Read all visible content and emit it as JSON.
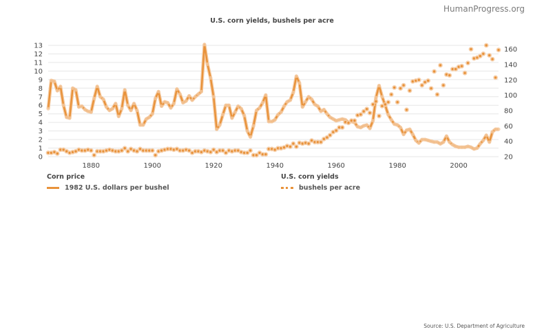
{
  "brand": "HumanProgress.org",
  "source": "Source: U.S. Department of Agriculture",
  "colors": {
    "accent": "#e8923a",
    "halo": "#f4c9a0",
    "grid": "#e6e6e6",
    "text": "#444444"
  },
  "chart_data": {
    "type": "line",
    "title": "U.S. corn yields, bushels per acre",
    "xlabel": "",
    "xlim": [
      1866,
      2013
    ],
    "xticks": [
      1880,
      1900,
      1920,
      1940,
      1960,
      1980,
      2000
    ],
    "left_axis": {
      "label": "Corn price",
      "ylim": [
        0,
        13
      ],
      "ticks": [
        0,
        1,
        2,
        3,
        4,
        5,
        6,
        7,
        8,
        9,
        10,
        11,
        12,
        13
      ]
    },
    "right_axis": {
      "label": "U.S. corn yields",
      "ylim": [
        20,
        165
      ],
      "ticks": [
        20,
        40,
        60,
        80,
        100,
        120,
        140,
        160
      ]
    },
    "legend": [
      {
        "group": "Corn price",
        "name": "1982 U.S. dollars per bushel",
        "style": "solid"
      },
      {
        "group": "U.S. corn yields",
        "name": "bushels per acre",
        "style": "dotted"
      }
    ],
    "series": [
      {
        "name": "1982 U.S. dollars per bushel",
        "axis": "left",
        "style": "solid",
        "x": [
          1866,
          1867,
          1868,
          1869,
          1870,
          1871,
          1872,
          1873,
          1874,
          1875,
          1876,
          1877,
          1878,
          1879,
          1880,
          1881,
          1882,
          1883,
          1884,
          1885,
          1886,
          1887,
          1888,
          1889,
          1890,
          1891,
          1892,
          1893,
          1894,
          1895,
          1896,
          1897,
          1898,
          1899,
          1900,
          1901,
          1902,
          1903,
          1904,
          1905,
          1906,
          1907,
          1908,
          1909,
          1910,
          1911,
          1912,
          1913,
          1914,
          1915,
          1916,
          1917,
          1918,
          1919,
          1920,
          1921,
          1922,
          1923,
          1924,
          1925,
          1926,
          1927,
          1928,
          1929,
          1930,
          1931,
          1932,
          1933,
          1934,
          1935,
          1936,
          1937,
          1938,
          1939,
          1940,
          1941,
          1942,
          1943,
          1944,
          1945,
          1946,
          1947,
          1948,
          1949,
          1950,
          1951,
          1952,
          1953,
          1954,
          1955,
          1956,
          1957,
          1958,
          1959,
          1960,
          1961,
          1962,
          1963,
          1964,
          1965,
          1966,
          1967,
          1968,
          1969,
          1970,
          1971,
          1972,
          1973,
          1974,
          1975,
          1976,
          1977,
          1978,
          1979,
          1980,
          1981,
          1982,
          1983,
          1984,
          1985,
          1986,
          1987,
          1988,
          1989,
          1990,
          1991,
          1992,
          1993,
          1994,
          1995,
          1996,
          1997,
          1998,
          1999,
          2000,
          2001,
          2002,
          2003,
          2004,
          2005,
          2006,
          2007,
          2008,
          2009,
          2010,
          2011,
          2012,
          2013
        ],
        "values": [
          5.6,
          8.9,
          8.8,
          7.7,
          8.2,
          6.0,
          4.6,
          4.5,
          8.0,
          7.8,
          5.8,
          5.9,
          5.5,
          5.3,
          5.2,
          6.8,
          8.2,
          7.0,
          6.7,
          5.8,
          5.4,
          5.6,
          6.2,
          4.7,
          5.6,
          7.8,
          6.0,
          5.4,
          6.2,
          5.4,
          3.7,
          3.7,
          4.4,
          4.6,
          5.0,
          6.8,
          7.6,
          5.9,
          6.4,
          6.3,
          5.7,
          6.2,
          7.9,
          7.3,
          6.3,
          6.5,
          7.1,
          6.6,
          7.0,
          7.3,
          7.6,
          13.1,
          10.8,
          9.2,
          7.0,
          3.2,
          3.7,
          4.9,
          6.0,
          6.0,
          4.5,
          5.2,
          5.9,
          5.6,
          4.8,
          3.0,
          2.3,
          3.6,
          5.4,
          5.7,
          6.3,
          7.2,
          4.1,
          4.1,
          4.3,
          4.9,
          5.2,
          5.9,
          6.4,
          6.6,
          7.5,
          9.4,
          8.6,
          5.8,
          6.4,
          7.0,
          6.7,
          6.1,
          5.9,
          5.3,
          5.5,
          5.0,
          4.6,
          4.4,
          4.2,
          4.3,
          4.4,
          4.3,
          4.0,
          4.1,
          4.0,
          3.5,
          3.4,
          3.6,
          3.7,
          3.3,
          4.2,
          6.9,
          8.3,
          7.0,
          6.0,
          4.9,
          4.3,
          3.8,
          3.7,
          3.4,
          2.6,
          3.1,
          3.2,
          2.6,
          1.9,
          1.6,
          2.0,
          2.0,
          1.9,
          1.8,
          1.7,
          1.7,
          1.5,
          1.7,
          2.4,
          1.7,
          1.4,
          1.2,
          1.1,
          1.1,
          1.1,
          1.2,
          1.1,
          0.9,
          1.0,
          1.5,
          1.9,
          2.5,
          1.7,
          2.9,
          3.2,
          3.2
        ]
      },
      {
        "name": "bushels per acre",
        "axis": "right",
        "style": "dotted",
        "x": [
          1866,
          1867,
          1868,
          1869,
          1870,
          1871,
          1872,
          1873,
          1874,
          1875,
          1876,
          1877,
          1878,
          1879,
          1880,
          1881,
          1882,
          1883,
          1884,
          1885,
          1886,
          1887,
          1888,
          1889,
          1890,
          1891,
          1892,
          1893,
          1894,
          1895,
          1896,
          1897,
          1898,
          1899,
          1900,
          1901,
          1902,
          1903,
          1904,
          1905,
          1906,
          1907,
          1908,
          1909,
          1910,
          1911,
          1912,
          1913,
          1914,
          1915,
          1916,
          1917,
          1918,
          1919,
          1920,
          1921,
          1922,
          1923,
          1924,
          1925,
          1926,
          1927,
          1928,
          1929,
          1930,
          1931,
          1932,
          1933,
          1934,
          1935,
          1936,
          1937,
          1938,
          1939,
          1940,
          1941,
          1942,
          1943,
          1944,
          1945,
          1946,
          1947,
          1948,
          1949,
          1950,
          1951,
          1952,
          1953,
          1954,
          1955,
          1956,
          1957,
          1958,
          1959,
          1960,
          1961,
          1962,
          1963,
          1964,
          1965,
          1966,
          1967,
          1968,
          1969,
          1970,
          1971,
          1972,
          1973,
          1974,
          1975,
          1976,
          1977,
          1978,
          1979,
          1980,
          1981,
          1982,
          1983,
          1984,
          1985,
          1986,
          1987,
          1988,
          1989,
          1990,
          1991,
          1992,
          1993,
          1994,
          1995,
          1996,
          1997,
          1998,
          1999,
          2000,
          2001,
          2002,
          2003,
          2004,
          2005,
          2006,
          2007,
          2008,
          2009,
          2010,
          2011,
          2012,
          2013
        ],
        "values": [
          25,
          25,
          26,
          24,
          29,
          29,
          27,
          25,
          26,
          27,
          29,
          28,
          28,
          29,
          28,
          22,
          27,
          27,
          27,
          28,
          29,
          28,
          27,
          27,
          28,
          31,
          27,
          30,
          28,
          27,
          30,
          28,
          28,
          28,
          28,
          22,
          27,
          28,
          29,
          30,
          30,
          29,
          30,
          28,
          28,
          29,
          28,
          25,
          27,
          27,
          26,
          28,
          27,
          26,
          29,
          26,
          28,
          28,
          25,
          28,
          27,
          28,
          28,
          26,
          25,
          25,
          28,
          22,
          22,
          25,
          23,
          23,
          30,
          30,
          29,
          31,
          31,
          32,
          34,
          33,
          37,
          33,
          38,
          37,
          38,
          37,
          41,
          39,
          39,
          39,
          43,
          45,
          48,
          52,
          54,
          58,
          58,
          65,
          64,
          67,
          67,
          74,
          75,
          79,
          82,
          77,
          88,
          92,
          73,
          86,
          88,
          91,
          101,
          110,
          91,
          109,
          113,
          81,
          106,
          118,
          119,
          120,
          113,
          117,
          119,
          109,
          131,
          101,
          139,
          113,
          127,
          126,
          134,
          134,
          137,
          138,
          129,
          142,
          160,
          148,
          149,
          151,
          154,
          165,
          152,
          147,
          123,
          159
        ]
      }
    ]
  }
}
